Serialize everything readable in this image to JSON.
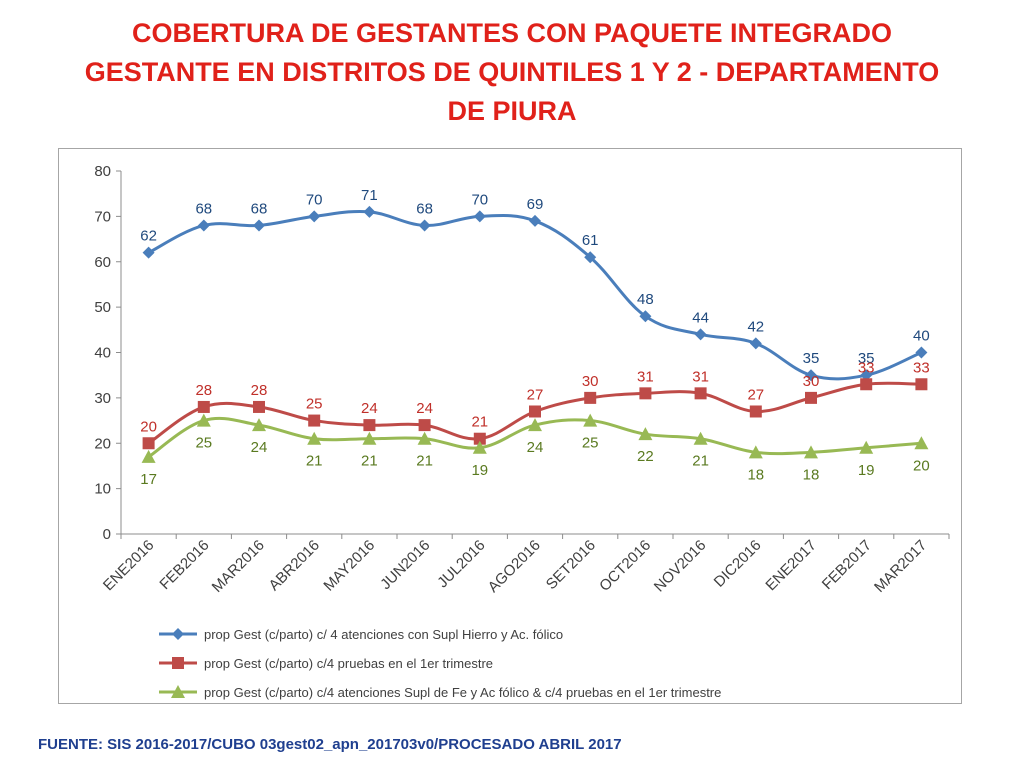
{
  "page": {
    "title_lines": [
      "COBERTURA DE GESTANTES CON PAQUETE INTEGRADO",
      "GESTANTE EN DISTRITOS DE QUINTILES 1 Y 2 - DEPARTAMENTO",
      "DE PIURA"
    ],
    "footer": "FUENTE: SIS 2016-2017/CUBO 03gest02_apn_201703v0/PROCESADO ABRIL 2017"
  },
  "chart_data": {
    "type": "line",
    "title": "COBERTURA DE GESTANTES CON PAQUETE INTEGRADO GESTANTE EN DISTRITOS DE QUINTILES 1 Y 2 - DEPARTAMENTO DE PIURA",
    "xlabel": "",
    "ylabel": "",
    "ylim": [
      0,
      80
    ],
    "yticks": [
      0,
      10,
      20,
      30,
      40,
      50,
      60,
      70,
      80
    ],
    "grid": false,
    "legend_position": "bottom",
    "categories": [
      "ENE2016",
      "FEB2016",
      "MAR2016",
      "ABR2016",
      "MAY2016",
      "JUN2016",
      "JUL2016",
      "AGO2016",
      "SET2016",
      "OCT2016",
      "NOV2016",
      "DIC2016",
      "ENE2017",
      "FEB2017",
      "MAR2017"
    ],
    "series": [
      {
        "name": "prop Gest (c/parto) c/ 4 atenciones con Supl Hierro y Ac. fólico",
        "color": "#4a7ebb",
        "label_color": "#1f497d",
        "marker": "diamond",
        "label_position": "above",
        "values": [
          62,
          68,
          68,
          70,
          71,
          68,
          70,
          69,
          61,
          48,
          44,
          42,
          35,
          35,
          40
        ]
      },
      {
        "name": "prop Gest (c/parto) c/4 pruebas en el 1er trimestre",
        "color": "#be4b48",
        "label_color": "#c0302a",
        "marker": "square",
        "label_position": "above",
        "values": [
          20,
          28,
          28,
          25,
          24,
          24,
          21,
          27,
          30,
          31,
          31,
          27,
          30,
          33,
          33
        ]
      },
      {
        "name": "prop Gest (c/parto) c/4 atenciones Supl de Fe y Ac fólico & c/4 pruebas en el 1er trimestre",
        "color": "#98b954",
        "label_color": "#5a7a20",
        "marker": "triangle",
        "label_position": "below",
        "values": [
          17,
          25,
          24,
          21,
          21,
          21,
          19,
          24,
          25,
          22,
          21,
          18,
          18,
          19,
          20
        ]
      }
    ]
  }
}
